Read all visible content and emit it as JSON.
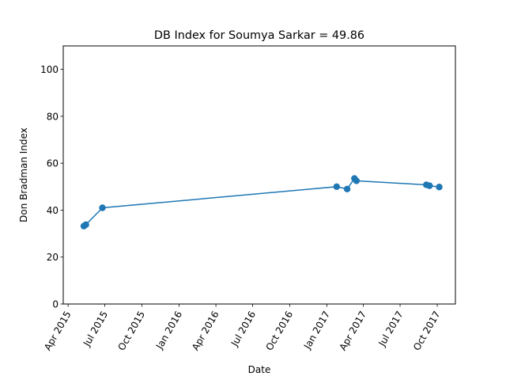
{
  "chart_data": {
    "type": "line",
    "title": "DB Index for Soumya Sarkar = 49.86",
    "xlabel": "Date",
    "ylabel": "Don Bradman Index",
    "ylim": [
      0,
      110
    ],
    "yticks": [
      0,
      20,
      40,
      60,
      80,
      100
    ],
    "xlim": [
      "2015-03-20",
      "2017-11-15"
    ],
    "xticks": [
      {
        "date": "2015-04-01",
        "label": "Apr 2015"
      },
      {
        "date": "2015-07-01",
        "label": "Jul 2015"
      },
      {
        "date": "2015-10-01",
        "label": "Oct 2015"
      },
      {
        "date": "2016-01-01",
        "label": "Jan 2016"
      },
      {
        "date": "2016-04-01",
        "label": "Apr 2016"
      },
      {
        "date": "2016-07-01",
        "label": "Jul 2016"
      },
      {
        "date": "2016-10-01",
        "label": "Oct 2016"
      },
      {
        "date": "2017-01-01",
        "label": "Jan 2017"
      },
      {
        "date": "2017-04-01",
        "label": "Apr 2017"
      },
      {
        "date": "2017-07-01",
        "label": "Jul 2017"
      },
      {
        "date": "2017-10-01",
        "label": "Oct 2017"
      }
    ],
    "grid": false,
    "series": [
      {
        "color": "#1f77b4",
        "points": [
          {
            "x": "2015-05-10",
            "y": 33.2
          },
          {
            "x": "2015-05-15",
            "y": 33.8
          },
          {
            "x": "2015-06-25",
            "y": 41.0
          },
          {
            "x": "2017-01-25",
            "y": 50.0
          },
          {
            "x": "2017-02-20",
            "y": 49.0
          },
          {
            "x": "2017-03-10",
            "y": 53.5
          },
          {
            "x": "2017-03-15",
            "y": 52.5
          },
          {
            "x": "2017-09-04",
            "y": 50.8
          },
          {
            "x": "2017-09-12",
            "y": 50.4
          },
          {
            "x": "2017-10-06",
            "y": 49.86
          }
        ]
      }
    ]
  }
}
